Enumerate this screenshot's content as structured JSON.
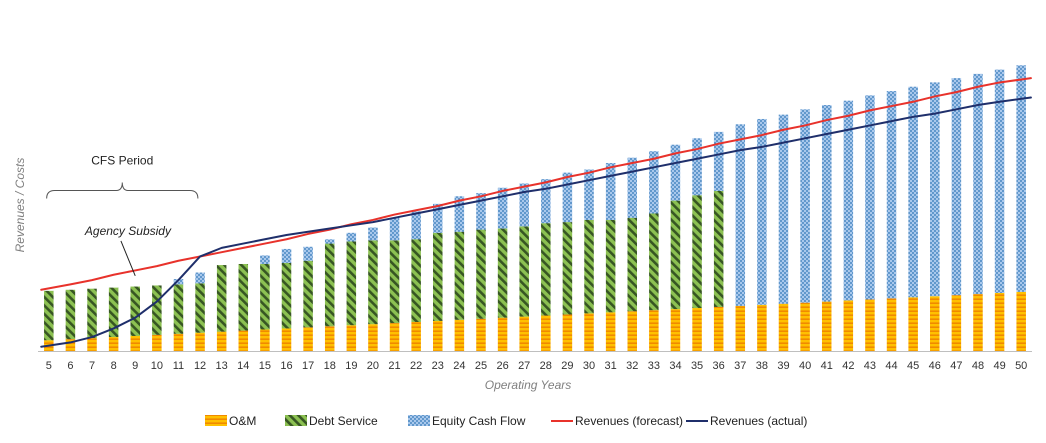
{
  "chart_data": {
    "type": "bar",
    "stacked": true,
    "categories": [
      "5",
      "6",
      "7",
      "8",
      "9",
      "10",
      "11",
      "12",
      "13",
      "14",
      "15",
      "16",
      "17",
      "18",
      "19",
      "20",
      "21",
      "22",
      "23",
      "24",
      "25",
      "26",
      "27",
      "28",
      "29",
      "30",
      "31",
      "32",
      "33",
      "34",
      "35",
      "36",
      "37",
      "38",
      "39",
      "40",
      "41",
      "42",
      "43",
      "44",
      "45",
      "46",
      "47",
      "48",
      "49",
      "50"
    ],
    "xlabel": "Operating Years",
    "ylabel": "Revenues / Costs",
    "ylim": [
      0,
      310
    ],
    "grid": false,
    "legend_position": "bottom",
    "series": [
      {
        "name": "O&M",
        "kind": "bar",
        "color": "#f5a623",
        "values": [
          10,
          11,
          12,
          13,
          14,
          15,
          16,
          17,
          18,
          19,
          20,
          21,
          22,
          23,
          24,
          25,
          26,
          27,
          28,
          29,
          30,
          31,
          32,
          33,
          34,
          35,
          36,
          37,
          38,
          39,
          40,
          41,
          42,
          43,
          44,
          45,
          46,
          47,
          48,
          49,
          50,
          51,
          52,
          53,
          54,
          55
        ]
      },
      {
        "name": "Debt Service",
        "kind": "bar",
        "color": "#70ad47",
        "values": [
          46,
          46,
          46,
          46,
          46,
          46,
          46,
          46,
          62,
          62,
          61,
          61,
          62,
          77,
          78,
          78,
          77,
          77,
          82,
          82,
          83,
          83,
          84,
          86,
          86,
          87,
          86,
          87,
          90,
          101,
          105,
          108,
          0,
          0,
          0,
          0,
          0,
          0,
          0,
          0,
          0,
          0,
          0,
          0,
          0,
          0
        ]
      },
      {
        "name": "Equity Cash Flow",
        "kind": "bar",
        "color": "#5b9bd5",
        "values": [
          0,
          0,
          0,
          0,
          0,
          0,
          5,
          10,
          0,
          0,
          8,
          13,
          13,
          4,
          8,
          12,
          21,
          26,
          27,
          33,
          34,
          38,
          40,
          41,
          46,
          47,
          53,
          56,
          58,
          52,
          53,
          55,
          169,
          173,
          176,
          180,
          183,
          186,
          190,
          193,
          196,
          199,
          202,
          205,
          208,
          211
        ]
      },
      {
        "name": "Revenues (forecast)",
        "kind": "line",
        "color": "#e8322b",
        "values": [
          57,
          62,
          66,
          71,
          75,
          79,
          84,
          88,
          92,
          96,
          100,
          104,
          109,
          113,
          118,
          122,
          127,
          131,
          135,
          140,
          144,
          149,
          153,
          157,
          162,
          166,
          171,
          175,
          179,
          184,
          188,
          193,
          197,
          201,
          206,
          210,
          215,
          219,
          224,
          228,
          232,
          237,
          241,
          246,
          250,
          254
        ]
      },
      {
        "name": "Revenues (actual)",
        "kind": "line",
        "color": "#1f2f6b",
        "values": [
          4,
          8,
          13,
          21,
          31,
          46,
          66,
          88,
          96,
          100,
          104,
          108,
          111,
          114,
          117,
          120,
          124,
          128,
          132,
          136,
          140,
          144,
          148,
          151,
          155,
          159,
          163,
          167,
          171,
          175,
          179,
          183,
          187,
          190,
          194,
          198,
          202,
          206,
          210,
          214,
          218,
          221,
          225,
          229,
          232,
          236
        ]
      }
    ],
    "annotations": [
      {
        "text": "CFS Period",
        "x_from": "5",
        "x_to": "12",
        "y": 168
      },
      {
        "text": "Agency Subsidy",
        "italic": true,
        "x": "11",
        "y": 108,
        "points_to_x": "9",
        "points_to_y": 70
      }
    ]
  }
}
